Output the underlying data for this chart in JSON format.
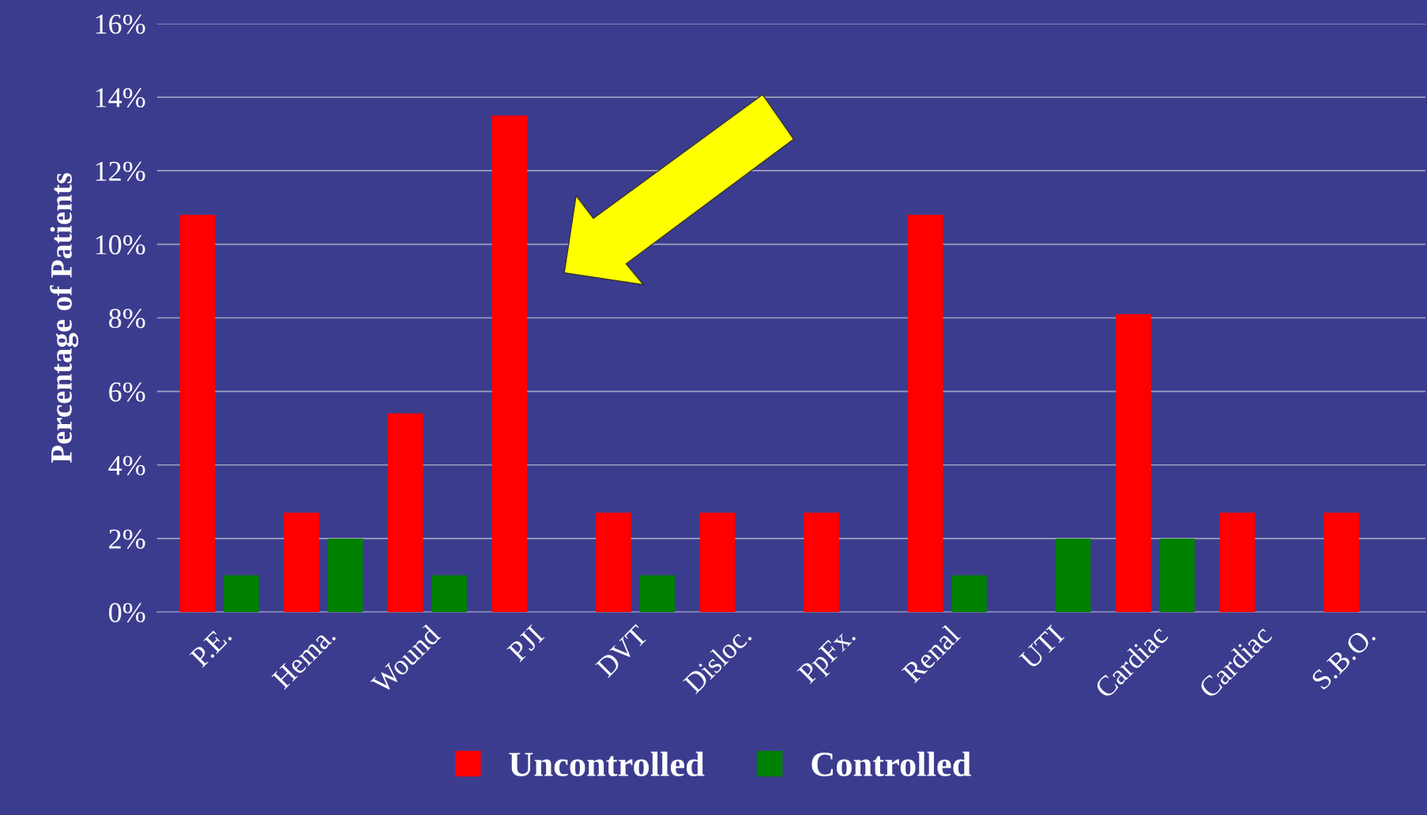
{
  "chart_data": {
    "type": "bar",
    "ylabel": "Percentage of Patients",
    "categories": [
      "P.E.",
      "Hema.",
      "Wound",
      "PJI",
      "DVT",
      "Disloc.",
      "PpFx.",
      "Renal",
      "UTI",
      "Cardiac",
      "Cardiac",
      "S.B.O."
    ],
    "series": [
      {
        "name": "Uncontrolled",
        "color": "#ff0000",
        "values": [
          10.8,
          2.7,
          5.4,
          13.5,
          2.7,
          2.7,
          2.7,
          10.8,
          null,
          8.1,
          2.7,
          2.7
        ]
      },
      {
        "name": "Controlled",
        "color": "#008000",
        "values": [
          1,
          2,
          1,
          null,
          1,
          null,
          null,
          1,
          2,
          2,
          null,
          null
        ]
      }
    ],
    "ylim": [
      0,
      16
    ],
    "yticks": [
      {
        "value": 0,
        "label": "0%"
      },
      {
        "value": 2,
        "label": "2%"
      },
      {
        "value": 4,
        "label": "4%"
      },
      {
        "value": 6,
        "label": "6%"
      },
      {
        "value": 8,
        "label": "8%"
      },
      {
        "value": 10,
        "label": "10%"
      },
      {
        "value": 12,
        "label": "12%"
      },
      {
        "value": 14,
        "label": "14%"
      },
      {
        "value": 16,
        "label": "16%"
      }
    ],
    "grid": "y",
    "legend": "bottom"
  }
}
